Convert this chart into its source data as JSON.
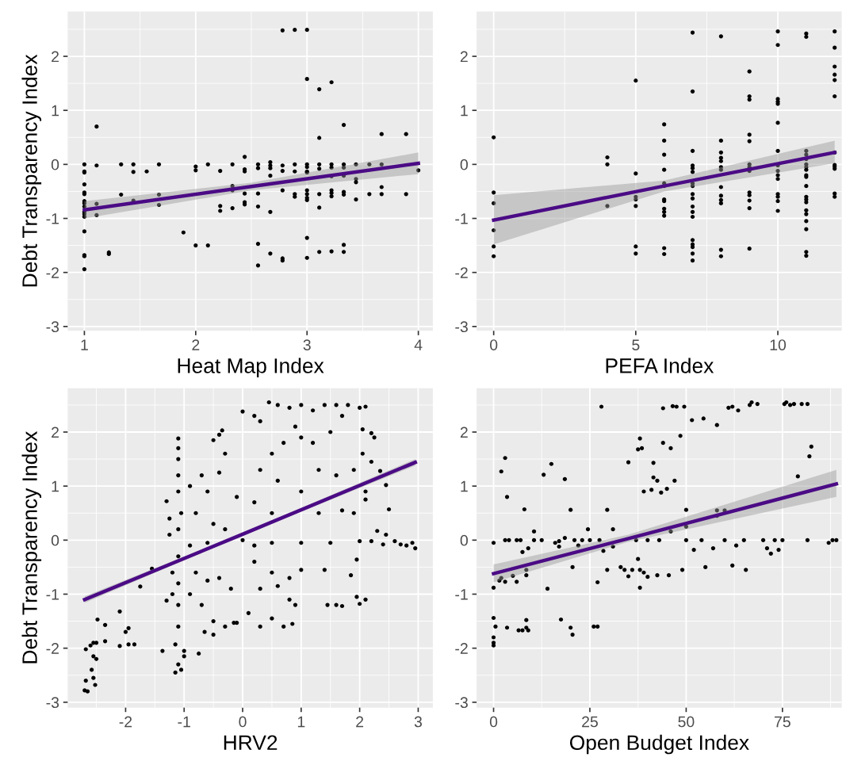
{
  "chart_data": [
    {
      "type": "scatter",
      "xlabel": "Heat Map Index",
      "ylabel": "Debt Transparency Index",
      "xlim": [
        0.85,
        4.13
      ],
      "ylim": [
        -3.08,
        2.83
      ],
      "xticks": [
        1,
        2,
        3,
        4
      ],
      "yticks": [
        -3,
        -2,
        -1,
        0,
        1,
        2
      ],
      "grid": true,
      "series": [
        {
          "marker": "circle",
          "color": "#000000",
          "x": [
            1,
            1,
            1,
            1,
            1,
            1,
            1,
            1,
            1,
            1,
            1,
            1,
            1,
            1,
            1,
            1,
            1.11,
            1.11,
            1.11,
            1.11,
            1.22,
            1.22,
            1.33,
            1.33,
            1.44,
            1.44,
            1.44,
            1.56,
            1.67,
            1.67,
            1.67,
            1.89,
            2,
            2,
            2,
            2.11,
            2.11,
            2.22,
            2.22,
            2.22,
            2.33,
            2.33,
            2.33,
            2.33,
            2.44,
            2.44,
            2.44,
            2.44,
            2.44,
            2.44,
            2.56,
            2.56,
            2.56,
            2.56,
            2.56,
            2.56,
            2.67,
            2.67,
            2.67,
            2.67,
            2.67,
            2.67,
            2.78,
            2.78,
            2.78,
            2.78,
            2.78,
            2.78,
            2.89,
            2.89,
            2.89,
            2.89,
            2.89,
            3,
            3,
            3,
            3,
            3,
            3,
            3,
            3,
            3,
            3,
            3,
            3,
            3.11,
            3.11,
            3.11,
            3.11,
            3.11,
            3.11,
            3.11,
            3.22,
            3.22,
            3.22,
            3.22,
            3.22,
            3.22,
            3.22,
            3.22,
            3.33,
            3.33,
            3.33,
            3.33,
            3.33,
            3.33,
            3.33,
            3.33,
            3.44,
            3.44,
            3.44,
            3.44,
            3.56,
            3.56,
            3.67,
            3.67,
            3.67,
            3.67,
            3.89,
            3.89,
            4
          ],
          "values": [
            0,
            -0.13,
            -0.15,
            -0.37,
            -0.52,
            -0.55,
            -0.68,
            -0.72,
            -0.78,
            -0.88,
            -0.92,
            -0.97,
            -1.24,
            -1.68,
            -1.7,
            -1.94,
            0.7,
            -0.02,
            -0.73,
            -0.94,
            -1.63,
            -1.66,
            0,
            -0.56,
            0,
            -0.14,
            -0.67,
            -0.13,
            0,
            -0.56,
            -0.75,
            -1.26,
            -0.04,
            -0.11,
            -1.5,
            0,
            -1.5,
            -0.12,
            -0.77,
            -0.86,
            0,
            -0.4,
            -0.48,
            -0.81,
            0.14,
            -0.09,
            -0.13,
            -0.54,
            -0.7,
            -0.74,
            0,
            -0.07,
            -0.54,
            -0.78,
            -1.47,
            -1.87,
            0.04,
            -0.02,
            -0.07,
            -0.21,
            -0.88,
            -1.65,
            2.48,
            -0.02,
            -0.12,
            -0.48,
            -1.74,
            -1.78,
            2.49,
            0,
            -0.13,
            -0.55,
            -0.6,
            2.49,
            1.58,
            0,
            -0.05,
            -0.13,
            -0.15,
            -0.48,
            -0.55,
            -0.62,
            -0.66,
            -1.36,
            -1.73,
            1.39,
            0.49,
            0,
            -0.08,
            -0.55,
            -0.8,
            -1.62,
            1.52,
            0,
            -0.06,
            -0.22,
            -0.48,
            -0.53,
            -0.59,
            -1.61,
            0.73,
            0,
            -0.06,
            -0.21,
            -0.51,
            -0.56,
            -1.49,
            -1.62,
            0,
            -0.27,
            -0.33,
            -0.65,
            0,
            -0.55,
            0.56,
            0,
            -0.42,
            -0.55,
            0.56,
            -0.55,
            -0.11
          ]
        },
        {
          "type": "line",
          "color": "#4b0b85",
          "x": [
            1,
            2.5,
            4
          ],
          "values": [
            -0.84,
            -0.41,
            0.02
          ],
          "lower": [
            -1.0,
            -0.48,
            -0.18
          ],
          "upper": [
            -0.68,
            -0.34,
            0.22
          ]
        }
      ]
    },
    {
      "type": "scatter",
      "xlabel": "PEFA Index",
      "xlim": [
        -0.6,
        12.25
      ],
      "ylim": [
        -3.08,
        2.83
      ],
      "xticks": [
        0,
        5,
        10
      ],
      "yticks": [
        -3,
        -2,
        -1,
        0,
        1,
        2
      ],
      "grid": true,
      "series": [
        {
          "marker": "circle",
          "color": "#000000",
          "x": [
            0,
            0,
            0,
            0,
            0,
            0,
            4,
            4,
            4,
            5,
            5,
            5,
            5,
            5,
            5,
            5,
            6,
            6,
            6,
            6,
            6,
            6,
            6,
            6,
            6,
            6,
            6,
            6,
            6,
            7,
            7,
            7,
            7,
            7,
            7,
            7,
            7,
            7,
            7,
            7,
            7,
            7,
            7,
            7,
            7,
            7,
            7,
            8,
            8,
            8,
            8,
            8,
            8,
            8,
            8,
            8,
            8,
            8,
            8,
            8,
            9,
            9,
            9,
            9,
            9,
            9,
            9,
            9,
            9,
            9,
            9,
            9,
            9,
            10,
            10,
            10,
            10,
            10,
            10,
            10,
            10,
            10,
            10,
            10,
            10,
            10,
            10,
            10,
            11,
            11,
            11,
            11,
            11,
            11,
            11,
            11,
            11,
            11,
            11,
            11,
            11,
            11,
            11,
            11,
            11,
            11,
            11,
            11,
            12,
            12,
            12,
            12,
            12,
            12,
            12,
            12,
            12,
            12,
            12,
            12
          ],
          "values": [
            0.5,
            -0.52,
            -0.72,
            -1.22,
            -1.52,
            -1.7,
            0.13,
            0,
            -0.77,
            1.55,
            -0.17,
            -0.6,
            -0.65,
            -0.77,
            -1.52,
            -1.65,
            0.74,
            0.44,
            0.18,
            -0.1,
            -0.35,
            -0.4,
            -0.65,
            -0.68,
            -0.82,
            -0.88,
            -0.95,
            -1.55,
            -1.66,
            2.44,
            1.35,
            0.25,
            -0.02,
            -0.07,
            -0.14,
            -0.35,
            -0.4,
            -0.55,
            -0.63,
            -0.78,
            -0.88,
            -0.97,
            -1.4,
            -1.48,
            -1.53,
            -1.65,
            -1.78,
            2.37,
            0.44,
            0.22,
            0.12,
            0.06,
            -0.05,
            -0.1,
            -0.42,
            -0.58,
            -0.66,
            -0.72,
            -1.58,
            -1.7,
            1.72,
            1.26,
            1.2,
            0.55,
            0.43,
            0,
            -0.05,
            -0.12,
            -0.52,
            -0.57,
            -0.67,
            -0.81,
            -1.56,
            2.46,
            2.21,
            1.21,
            1.16,
            1.12,
            0.77,
            0.25,
            -0.02,
            -0.12,
            -0.2,
            -0.27,
            -0.55,
            -0.6,
            -0.68,
            -0.86,
            2.42,
            2.36,
            0.25,
            0.18,
            0.1,
            0,
            -0.05,
            -0.1,
            -0.2,
            -0.23,
            -0.4,
            -0.6,
            -0.65,
            -0.7,
            -0.85,
            -0.92,
            -1.05,
            -1.2,
            -1.62,
            -1.69,
            2.46,
            2.16,
            1.81,
            1.66,
            1.56,
            1.26,
            0.22,
            -0.01,
            -0.04,
            -0.08,
            -0.54,
            -0.6
          ]
        },
        {
          "type": "line",
          "color": "#4b0b85",
          "x": [
            0,
            6,
            12
          ],
          "values": [
            -1.03,
            -0.4,
            0.22
          ],
          "lower": [
            -1.48,
            -0.5,
            0.02
          ],
          "upper": [
            -0.57,
            -0.3,
            0.44
          ]
        }
      ]
    },
    {
      "type": "scatter",
      "xlabel": "HRV2",
      "ylabel": "Debt Transparency Index",
      "xlim": [
        -2.99,
        3.25
      ],
      "ylim": [
        -3.1,
        2.81
      ],
      "xticks": [
        -2,
        -1,
        0,
        1,
        2,
        3
      ],
      "yticks": [
        -3,
        -2,
        -1,
        0,
        1,
        2
      ],
      "grid": true,
      "series": [
        {
          "marker": "circle",
          "color": "#000000",
          "x": [
            -2.7,
            -2.68,
            -2.65,
            -2.68,
            -2.6,
            -2.55,
            -2.5,
            -2.58,
            -2.55,
            -2.52,
            -2.55,
            -2.5,
            -2.48,
            -2.35,
            -2.35,
            -2.1,
            -2.1,
            -2.0,
            -1.95,
            -1.95,
            -1.85,
            -1.75,
            -1.55,
            -1.37,
            -1.3,
            -1.3,
            -1.1,
            -1.1,
            -1.1,
            -1.1,
            -1.1,
            -1.05,
            -1.1,
            -1.1,
            -1.1,
            -1.1,
            -1.1,
            -1.15,
            -1.1,
            -1.05,
            -1.0,
            -1.0,
            -1.15,
            -1.25,
            -1.25,
            -1.2,
            -1.2,
            -0.9,
            -0.8,
            -0.7,
            -0.6,
            -0.5,
            -0.4,
            -0.35,
            -0.3,
            -0.5,
            -0.9,
            -0.6,
            -0.3,
            -0.8,
            -0.6,
            -0.4,
            -0.9,
            -0.7,
            -0.5,
            -0.3,
            -0.5,
            -0.75,
            -0.65,
            -0.15,
            -0.2,
            -0.4,
            0,
            0.2,
            0.3,
            0.45,
            0.6,
            0.8,
            0.9,
            1.0,
            1.0,
            1.2,
            1.4,
            1.6,
            1.8,
            1.7,
            2.0,
            2.1,
            0.5,
            0.7,
            1.2,
            1.5,
            0.3,
            0.6,
            1.0,
            1.3,
            1.6,
            1.9,
            2.05,
            2.2,
            2.25,
            2.2,
            2.05,
            2.1,
            2.1,
            2.35,
            2.45,
            2.5,
            2.3,
            2.45,
            0.2,
            0.5,
            1.3,
            1.7,
            1.9,
            0.0,
            0.5,
            1.0,
            1.5,
            2.0,
            2.2,
            2.4,
            2.6,
            2.7,
            2.8,
            2.9,
            2.95,
            0.2,
            0.5,
            0.8,
            1.0,
            1.4,
            1.95,
            1.85,
            0.3,
            0.6,
            0.1,
            0.3,
            0.5,
            0.7,
            0.85,
            0.8,
            0.9,
            1.45,
            1.6,
            1.7,
            1.95,
            2.0,
            2.1,
            -0.1,
            -0.1,
            0.2
          ],
          "values": [
            -2.78,
            -2.6,
            -2.8,
            -2.02,
            -1.95,
            -1.9,
            -1.9,
            -2.4,
            -2.55,
            -2.68,
            -2.15,
            -2.2,
            -1.47,
            -1.57,
            -1.87,
            -1.32,
            -1.96,
            -1.7,
            -1.63,
            -1.93,
            -1.93,
            -0.86,
            -0.53,
            -2.05,
            0.72,
            -1.12,
            1.88,
            1.7,
            1.5,
            1.2,
            0.9,
            0.5,
            0.2,
            -0.3,
            -0.8,
            -1.2,
            -1.6,
            -1.93,
            -2.3,
            -2.4,
            -2.15,
            -2.05,
            -2.45,
            0.4,
            0.1,
            -0.6,
            -1.0,
            1.0,
            0.5,
            1.2,
            0.9,
            1.85,
            1.95,
            2.03,
            1.6,
            0.3,
            -0.1,
            -0.05,
            0.2,
            -0.6,
            -0.75,
            -0.7,
            -1.0,
            -1.2,
            -1.5,
            -1.6,
            -1.75,
            -2.1,
            -1.7,
            -1.53,
            -0.9,
            1.25,
            2.38,
            2.3,
            2.2,
            2.55,
            2.5,
            2.45,
            2.1,
            1.9,
            2.5,
            2.4,
            2.5,
            2.5,
            2.5,
            2.3,
            2.45,
            2.47,
            1.6,
            1.8,
            1.8,
            2.0,
            1.3,
            1.1,
            0.9,
            1.3,
            1.2,
            1.3,
            2.05,
            1.98,
            1.9,
            1.45,
            1.6,
            0.9,
            0.75,
            1.28,
            1.02,
            0.57,
            0.17,
            0.1,
            0.7,
            0.5,
            0.5,
            0.55,
            0.5,
            0.0,
            -0.05,
            -0.05,
            -0.05,
            -0.02,
            -0.02,
            -0.08,
            -0.02,
            -0.08,
            -0.1,
            -0.05,
            -0.15,
            -0.4,
            -0.6,
            -0.7,
            -0.55,
            -0.55,
            -0.36,
            -0.65,
            -0.9,
            -0.85,
            -1.35,
            -1.6,
            -1.45,
            -1.6,
            -1.55,
            -1.1,
            -1.2,
            -1.2,
            -1.2,
            -1.22,
            -1.05,
            -1.18,
            -1.1,
            -1.53,
            0.8,
            -0.1
          ]
        },
        {
          "type": "line",
          "color": "#4b0b85",
          "x": [
            -2.7,
            0,
            2.95
          ],
          "values": [
            -1.1,
            0.11,
            1.44
          ],
          "lower": [
            -1.16,
            0.09,
            1.38
          ],
          "upper": [
            -1.04,
            0.13,
            1.5
          ]
        }
      ]
    },
    {
      "type": "scatter",
      "xlabel": "Open Budget Index",
      "xlim": [
        -4.4,
        90.4
      ],
      "ylim": [
        -3.1,
        2.81
      ],
      "xticks": [
        0,
        25,
        50,
        75
      ],
      "yticks": [
        -3,
        -2,
        -1,
        0,
        1,
        2
      ],
      "grid": true,
      "series": [
        {
          "marker": "circle",
          "color": "#000000",
          "x": [
            0,
            0,
            0,
            0,
            0,
            0,
            0.5,
            2,
            1.5,
            2,
            3,
            3,
            4,
            3.5,
            3.5,
            3,
            6,
            6,
            5,
            6.5,
            7.5,
            7,
            7.5,
            8,
            8.5,
            8.5,
            8.5,
            8.5,
            9,
            9,
            10.5,
            10.5,
            12.5,
            13,
            14,
            15,
            16,
            17,
            17,
            17.5,
            18.5,
            18.5,
            20,
            20,
            20.5,
            20.5,
            21,
            22,
            23,
            24.5,
            25,
            26,
            27,
            27,
            28,
            27.5,
            28.5,
            29.5,
            29.5,
            31,
            31,
            33,
            34,
            35,
            36,
            35,
            37,
            37.5,
            38,
            37.5,
            38.5,
            38,
            38,
            39,
            39,
            40,
            40,
            41,
            41.5,
            41.5,
            42.5,
            42.5,
            43,
            43.5,
            44,
            44,
            45,
            45.5,
            46,
            46,
            46.5,
            47,
            47.5,
            48.5,
            49,
            49.5,
            50,
            50,
            50,
            51.5,
            52,
            54,
            54.5,
            55,
            57,
            58,
            58,
            58,
            60,
            60,
            61,
            62,
            62,
            63,
            63.5,
            65,
            65.5,
            66.5,
            67,
            68.5,
            70,
            71,
            72,
            73,
            74,
            75,
            75.5,
            76,
            77,
            78,
            79,
            80,
            81.5,
            81.5,
            82,
            82.5,
            87,
            88,
            89
          ],
          "values": [
            -0.05,
            -0.88,
            -1.44,
            -1.8,
            -1.9,
            -1.95,
            -1.6,
            -0.7,
            -0.75,
            1.27,
            1.52,
            0,
            0,
            0.8,
            -1.62,
            -0.77,
            0,
            -0.77,
            -0.66,
            -1.67,
            -1.67,
            0,
            -0.22,
            0.57,
            -0.55,
            -0.65,
            -1.48,
            -1.62,
            -0.15,
            -1.67,
            0.16,
            0,
            0,
            1.21,
            -0.9,
            1.41,
            -0.05,
            -0.02,
            -0.12,
            -1.47,
            1.13,
            0.04,
            0.56,
            -1.62,
            -0.5,
            -1.75,
            0,
            -0.1,
            0,
            0.2,
            0,
            -1.6,
            -0.78,
            -1.6,
            2.47,
            0,
            -0.2,
            0.56,
            -0.55,
            0.2,
            -0.12,
            -0.5,
            -0.55,
            1.44,
            -0.55,
            -0.67,
            0,
            -0.35,
            1.88,
            1.68,
            1.7,
            -0.55,
            -0.88,
            0.9,
            -0.6,
            -0.68,
            0,
            0.93,
            1.43,
            1.16,
            1.1,
            -0.65,
            0,
            0.88,
            2.44,
            1.8,
            0.95,
            -0.65,
            1.7,
            0.16,
            2.48,
            1.1,
            2.47,
            1.93,
            -0.55,
            2.47,
            0.56,
            0.25,
            0,
            2.22,
            -0.18,
            0,
            2.25,
            -0.5,
            -0.15,
            0.55,
            0.45,
            2.13,
            0,
            0.55,
            2.45,
            2.47,
            -0.47,
            -0.1,
            2.4,
            0,
            -0.55,
            2.5,
            2.55,
            2.52,
            0,
            -0.15,
            -0.25,
            0,
            -0.18,
            0,
            2.52,
            2.55,
            2.5,
            2.52,
            1.18,
            2.52,
            2.52,
            0,
            1.55,
            1.73,
            -0.05,
            0,
            0
          ]
        },
        {
          "type": "line",
          "color": "#4b0b85",
          "x": [
            0,
            35,
            89
          ],
          "values": [
            -0.62,
            0.03,
            1.04
          ],
          "lower": [
            -0.78,
            -0.03,
            0.8
          ],
          "upper": [
            -0.45,
            0.1,
            1.3
          ]
        }
      ]
    }
  ]
}
